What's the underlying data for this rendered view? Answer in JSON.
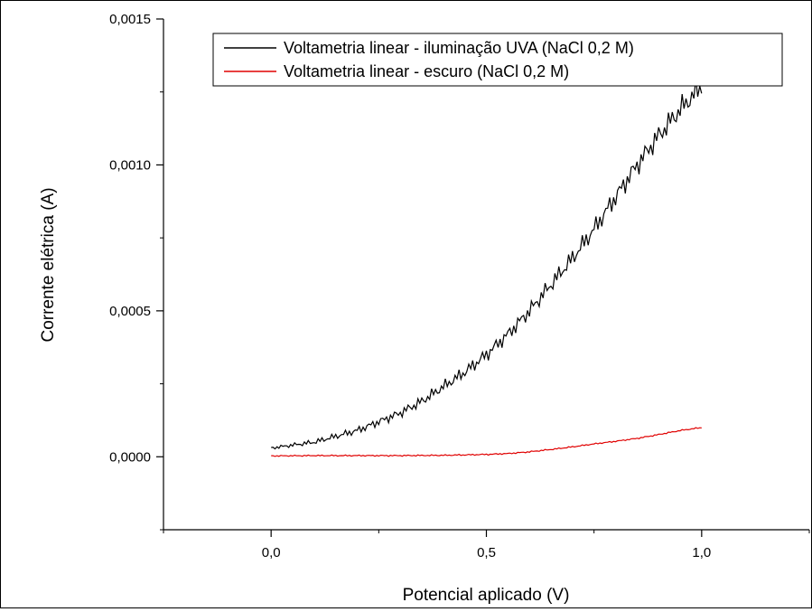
{
  "chart_data": {
    "type": "line",
    "title": "",
    "xlabel": "Potencial aplicado (V)",
    "ylabel": "Corrente elétrica (A)",
    "xlim": [
      -0.25,
      1.25
    ],
    "ylim": [
      -0.00025,
      0.0015
    ],
    "x_ticks": [
      0.0,
      0.5,
      1.0
    ],
    "x_tick_labels": [
      "0,0",
      "0,5",
      "1,0"
    ],
    "y_ticks": [
      0.0,
      0.0005,
      0.001,
      0.0015
    ],
    "y_tick_labels": [
      "0,0000",
      "0,0005",
      "0,0010",
      "0,0015"
    ],
    "grid": false,
    "legend_position": "top-right",
    "series": [
      {
        "name": "Voltametria linear - iluminação UVA (NaCl 0,2 M)",
        "color": "#000000",
        "x": [
          0.0,
          0.05,
          0.1,
          0.15,
          0.2,
          0.25,
          0.3,
          0.35,
          0.4,
          0.45,
          0.5,
          0.55,
          0.6,
          0.65,
          0.7,
          0.75,
          0.8,
          0.85,
          0.9,
          0.95,
          1.0
        ],
        "y": [
          3e-05,
          4e-05,
          5e-05,
          7e-05,
          9e-05,
          0.00012,
          0.00015,
          0.00019,
          0.00024,
          0.00029,
          0.00035,
          0.00042,
          0.0005,
          0.00059,
          0.00068,
          0.00078,
          0.00089,
          0.001,
          0.0011,
          0.00119,
          0.00127
        ]
      },
      {
        "name": "Voltametria linear - escuro (NaCl 0,2 M)",
        "color": "#e00000",
        "x": [
          0.0,
          0.1,
          0.2,
          0.3,
          0.4,
          0.5,
          0.55,
          0.6,
          0.65,
          0.7,
          0.75,
          0.8,
          0.85,
          0.9,
          0.95,
          1.0
        ],
        "y": [
          3e-06,
          4e-06,
          4e-06,
          4e-06,
          5e-06,
          8e-06,
          1.1e-05,
          1.7e-05,
          2.5e-05,
          3.4e-05,
          4.4e-05,
          5.3e-05,
          6.3e-05,
          7.6e-05,
          9e-05,
          0.0001
        ]
      }
    ]
  }
}
